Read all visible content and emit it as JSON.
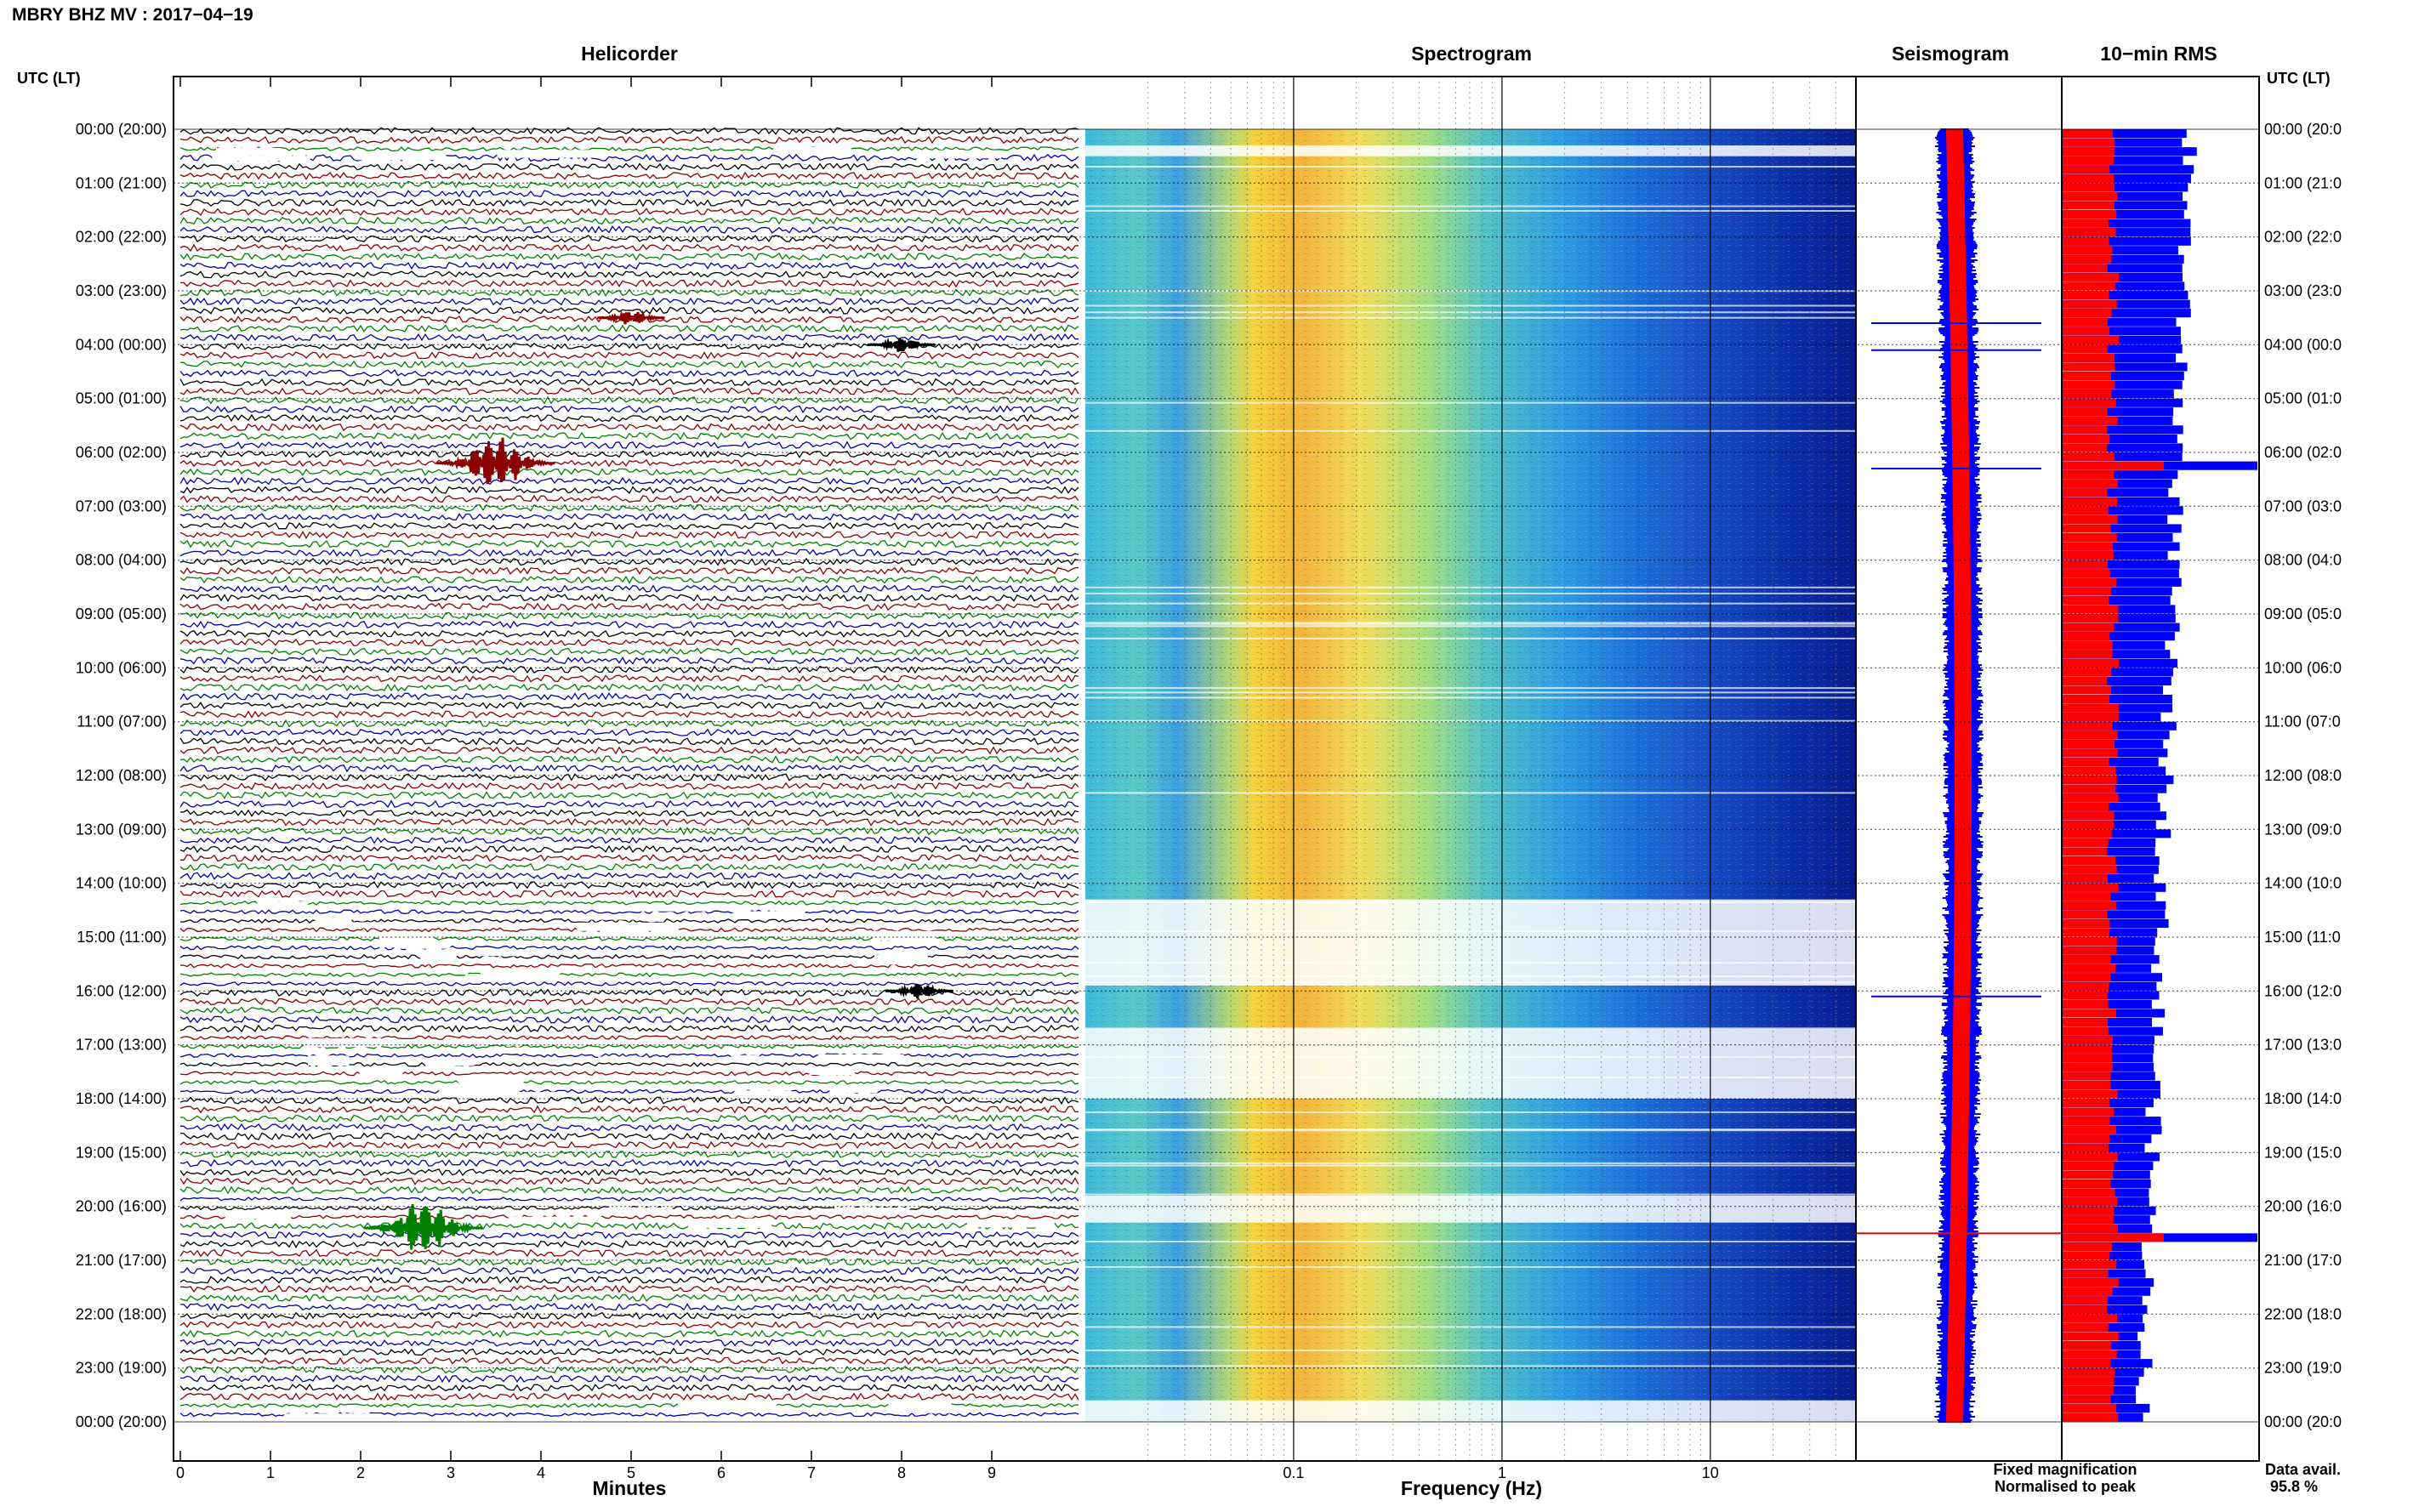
{
  "header": {
    "title": "MBRY BHZ MV : 2017−04−19"
  },
  "panels": {
    "helicorder": "Helicorder",
    "spectrogram": "Spectrogram",
    "seismogram": "Seismogram",
    "rms": "10−min RMS"
  },
  "axes": {
    "left_label": "UTC (LT)",
    "right_label": "UTC (LT)",
    "helicorder_xlabel": "Minutes",
    "spectrogram_xlabel": "Frequency (Hz)",
    "minute_ticks": [
      "0",
      "1",
      "2",
      "3",
      "4",
      "5",
      "6",
      "7",
      "8",
      "9"
    ],
    "freq_ticks": [
      "0.1",
      "1",
      "10"
    ],
    "hour_labels_left": [
      "00:00 (20:00)",
      "01:00 (21:00)",
      "02:00 (22:00)",
      "03:00 (23:00)",
      "04:00 (00:00)",
      "05:00 (01:00)",
      "06:00 (02:00)",
      "07:00 (03:00)",
      "08:00 (04:00)",
      "09:00 (05:00)",
      "10:00 (06:00)",
      "11:00 (07:00)",
      "12:00 (08:00)",
      "13:00 (09:00)",
      "14:00 (10:00)",
      "15:00 (11:00)",
      "16:00 (12:00)",
      "17:00 (13:00)",
      "18:00 (14:00)",
      "19:00 (15:00)",
      "20:00 (16:00)",
      "21:00 (17:00)",
      "22:00 (18:00)",
      "23:00 (19:00)",
      "00:00 (20:00)"
    ],
    "hour_labels_right": [
      "00:00 (20:0",
      "01:00 (21:0",
      "02:00 (22:0",
      "03:00 (23:0",
      "04:00 (00:0",
      "05:00 (01:0",
      "06:00 (02:0",
      "07:00 (03:0",
      "08:00 (04:0",
      "09:00 (05:0",
      "10:00 (06:0",
      "11:00 (07:0",
      "12:00 (08:0",
      "13:00 (09:0",
      "14:00 (10:0",
      "15:00 (11:0",
      "16:00 (12:0",
      "17:00 (13:0",
      "18:00 (14:0",
      "19:00 (15:0",
      "20:00 (16:0",
      "21:00 (17:0",
      "22:00 (18:0",
      "23:00 (19:0",
      "00:00 (20:0"
    ]
  },
  "legend": {
    "fixed": "Fixed magnification",
    "normalised": "Normalised to peak",
    "fixed_color": "#0000ff",
    "normalised_color": "#ff0000"
  },
  "availability": {
    "label": "Data avail.",
    "value": "95.8 %"
  },
  "colors": {
    "trace_cycle": [
      "#000000",
      "#8b0000",
      "#008000",
      "#0000aa"
    ],
    "seismogram_fixed": "#0000ff",
    "seismogram_normalised": "#ff0000"
  },
  "chart_data": [
    {
      "type": "line",
      "name": "helicorder",
      "xlabel": "Minutes",
      "xlim": [
        0,
        10
      ],
      "ylim_hours": [
        0,
        24
      ],
      "traces_per_hour": 6,
      "gaps_utc_hours": [
        [
          0.3,
          0.5
        ],
        [
          14.3,
          15.9
        ],
        [
          16.7,
          18.0
        ],
        [
          19.8,
          20.3
        ],
        [
          23.6,
          24.0
        ]
      ],
      "events": [
        {
          "hour": 3.5,
          "minute": 5.0,
          "amplitude": "small"
        },
        {
          "hour": 4.0,
          "minute": 8.0,
          "amplitude": "small"
        },
        {
          "hour": 6.2,
          "minute": 3.5,
          "amplitude": "large"
        },
        {
          "hour": 16.0,
          "minute": 8.2,
          "amplitude": "small"
        },
        {
          "hour": 20.4,
          "minute": 2.7,
          "amplitude": "large"
        }
      ]
    },
    {
      "type": "heatmap",
      "name": "spectrogram",
      "xlabel": "Frequency (Hz)",
      "xscale": "log",
      "xlim": [
        0.01,
        50
      ],
      "xticks": [
        0.1,
        1,
        10
      ],
      "ylim_hours": [
        0,
        24
      ],
      "peak_band_hz": [
        0.12,
        0.3
      ]
    },
    {
      "type": "line",
      "name": "seismogram",
      "series": [
        {
          "name": "Fixed magnification",
          "color": "#0000ff"
        },
        {
          "name": "Normalised to peak",
          "color": "#ff0000"
        }
      ],
      "spikes_utc_hours": [
        3.6,
        4.1,
        6.3,
        16.1,
        20.5
      ]
    },
    {
      "type": "bar",
      "name": "10-min RMS",
      "orientation": "horizontal",
      "interval_minutes": 10,
      "series": [
        {
          "name": "Fixed magnification",
          "color": "#0000ff"
        },
        {
          "name": "Normalised to peak",
          "color": "#ff0000"
        }
      ],
      "notable_peaks_utc_hours": [
        6.2,
        20.5
      ]
    }
  ]
}
